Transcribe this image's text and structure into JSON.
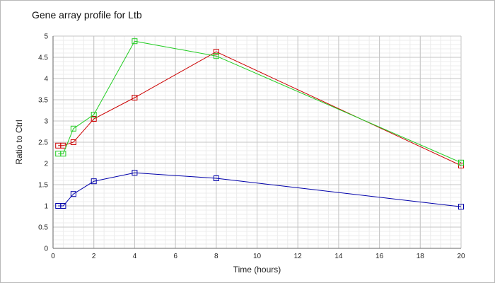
{
  "chart_data": {
    "type": "line",
    "title": "Gene array profile for Ltb",
    "xlabel": "Time (hours)",
    "ylabel": "Ratio to Ctrl",
    "xlim": [
      0,
      20
    ],
    "ylim": [
      0,
      5
    ],
    "x_ticks": [
      0,
      2,
      4,
      6,
      8,
      10,
      12,
      14,
      16,
      18,
      20
    ],
    "y_ticks": [
      0,
      0.5,
      1,
      1.5,
      2,
      2.5,
      3,
      3.5,
      4,
      4.5,
      5
    ],
    "y_tick_labels": [
      "0",
      "0.5",
      "1",
      "1.5",
      "2",
      "2.5",
      "3",
      "3.5",
      "4",
      "4.5",
      "5"
    ],
    "grid": true,
    "minor_grid": true,
    "legend": "none",
    "marker": "open-square",
    "series": [
      {
        "color": "#cc0000",
        "x": [
          0.25,
          0.5,
          1,
          2,
          4,
          8,
          20
        ],
        "y": [
          2.42,
          2.42,
          2.5,
          3.05,
          3.55,
          4.63,
          1.95
        ]
      },
      {
        "color": "#22cc22",
        "x": [
          0.25,
          0.5,
          1,
          2,
          4,
          8,
          20
        ],
        "y": [
          2.23,
          2.23,
          2.82,
          3.15,
          4.88,
          4.53,
          2.02
        ]
      },
      {
        "color": "#0000aa",
        "x": [
          0.25,
          0.5,
          1,
          2,
          4,
          8,
          20
        ],
        "y": [
          1.0,
          1.0,
          1.28,
          1.58,
          1.78,
          1.65,
          0.98
        ]
      }
    ]
  }
}
